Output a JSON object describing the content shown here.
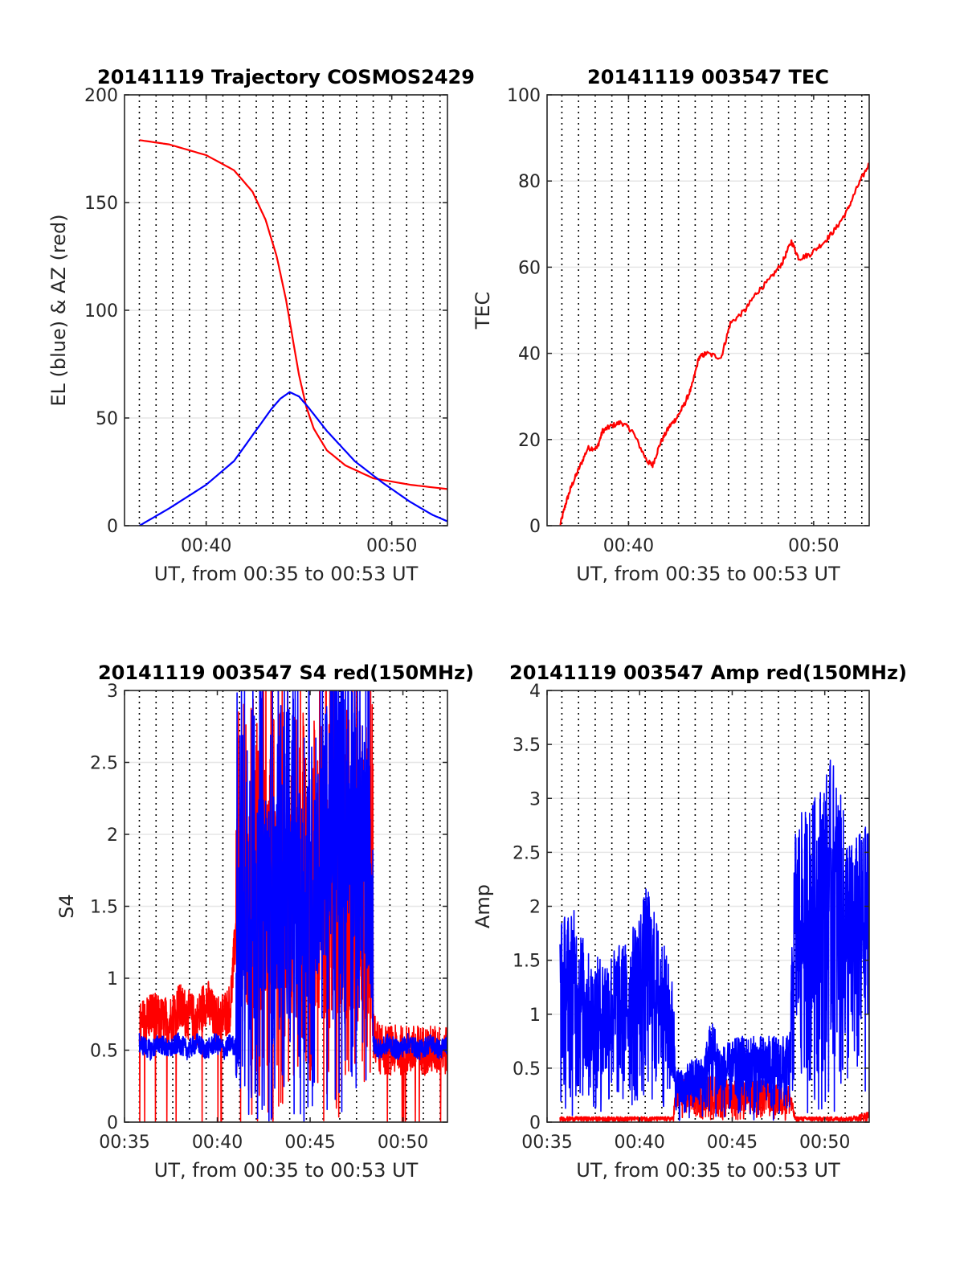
{
  "chart_data": [
    {
      "id": "traj",
      "type": "line",
      "title": "20141119 Trajectory COSMOS2429",
      "xlabel": "UT, from 00:35 to 00:53 UT",
      "ylabel": "EL (blue) & AZ (red)",
      "xlim": [
        35.6,
        53.0
      ],
      "ylim": [
        0,
        200
      ],
      "xticks": [
        {
          "v": 40,
          "label": "00:40"
        },
        {
          "v": 50,
          "label": "00:50"
        }
      ],
      "yticks": [
        {
          "v": 0,
          "label": "0"
        },
        {
          "v": 50,
          "label": "50"
        },
        {
          "v": 100,
          "label": "100"
        },
        {
          "v": 150,
          "label": "150"
        },
        {
          "v": 200,
          "label": "200"
        }
      ],
      "grid": {
        "x": "dotted",
        "y": "solid"
      },
      "series": [
        {
          "color": "#ff0000",
          "x": [
            36.4,
            38.0,
            40.0,
            41.5,
            42.5,
            43.2,
            43.8,
            44.3,
            44.7,
            45.0,
            45.4,
            45.8,
            46.5,
            47.5,
            49.0,
            51.0,
            53.0
          ],
          "y": [
            179,
            177,
            172,
            165,
            155,
            142,
            125,
            105,
            85,
            70,
            55,
            45,
            35,
            28,
            22,
            19,
            17
          ]
        },
        {
          "color": "#0000ff",
          "x": [
            36.4,
            38.0,
            40.0,
            41.5,
            42.5,
            43.5,
            44.0,
            44.5,
            45.0,
            45.5,
            46.5,
            48.0,
            49.5,
            51.0,
            52.2,
            53.0
          ],
          "y": [
            0,
            8,
            19,
            30,
            42,
            54,
            59,
            62,
            60,
            55,
            44,
            30,
            20,
            11,
            5,
            2
          ]
        }
      ]
    },
    {
      "id": "tec",
      "type": "line",
      "title": "20141119 003547 TEC",
      "xlabel": "UT, from 00:35 to 00:53 UT",
      "ylabel": "TEC",
      "xlim": [
        35.6,
        53.0
      ],
      "ylim": [
        0,
        100
      ],
      "xticks": [
        {
          "v": 40,
          "label": "00:40"
        },
        {
          "v": 50,
          "label": "00:50"
        }
      ],
      "yticks": [
        {
          "v": 0,
          "label": "0"
        },
        {
          "v": 20,
          "label": "20"
        },
        {
          "v": 40,
          "label": "40"
        },
        {
          "v": 60,
          "label": "60"
        },
        {
          "v": 80,
          "label": "80"
        },
        {
          "v": 100,
          "label": "100"
        }
      ],
      "grid": {
        "x": "dotted",
        "y": "solid"
      },
      "series": [
        {
          "color": "#ff0000",
          "noise": 0.6,
          "x": [
            36.3,
            36.6,
            36.9,
            37.3,
            37.8,
            38.3,
            38.6,
            39.0,
            39.6,
            40.2,
            41.0,
            41.3,
            41.7,
            42.2,
            42.6,
            43.0,
            43.4,
            43.8,
            44.2,
            45.0,
            45.5,
            46.3,
            46.9,
            47.6,
            48.3,
            48.8,
            49.2,
            49.8,
            50.6,
            51.2,
            51.8,
            52.4,
            53.0
          ],
          "y": [
            0,
            5,
            9,
            13,
            18,
            18,
            22,
            23,
            24,
            22,
            15,
            14,
            19,
            23,
            25,
            28,
            32,
            39,
            40,
            39,
            47,
            50,
            54,
            57,
            61,
            66,
            62,
            63,
            66,
            69,
            73,
            79,
            84
          ]
        }
      ]
    },
    {
      "id": "s4",
      "type": "line",
      "title": "20141119 003547 S4 red(150MHz)",
      "xlabel": "UT, from 00:35 to 00:53 UT",
      "ylabel": "S4",
      "xlim": [
        35.6,
        53.0
      ],
      "ylim": [
        0,
        3
      ],
      "xticks": [
        {
          "v": 35.6,
          "label": "00:35"
        },
        {
          "v": 40.6,
          "label": "00:40"
        },
        {
          "v": 45.6,
          "label": "00:45"
        },
        {
          "v": 50.6,
          "label": "00:50"
        }
      ],
      "yticks": [
        {
          "v": 0,
          "label": "0"
        },
        {
          "v": 0.5,
          "label": "0.5"
        },
        {
          "v": 1,
          "label": "1"
        },
        {
          "v": 1.5,
          "label": "1.5"
        },
        {
          "v": 2,
          "label": "2"
        },
        {
          "v": 2.5,
          "label": "2.5"
        },
        {
          "v": 3,
          "label": "3"
        }
      ],
      "grid": {
        "x": "dotted",
        "y": "solid"
      },
      "series": [
        {
          "color": "#ff0000",
          "x": [
            36.4,
            37.0,
            37.5,
            38.0,
            38.5,
            39.0,
            39.5,
            40.0,
            40.5,
            41.0,
            41.3,
            41.7,
            42.2,
            42.7,
            43.2,
            43.7,
            44.2,
            44.7,
            45.2,
            45.7,
            46.2,
            46.7,
            47.2,
            47.7,
            48.2,
            48.7,
            49.0,
            49.4,
            49.8,
            50.3,
            50.9,
            51.5,
            52.1,
            52.6,
            53.0
          ],
          "y": [
            0.65,
            0.75,
            0.7,
            0.7,
            0.8,
            0.75,
            0.7,
            0.85,
            0.7,
            0.75,
            0.8,
            1.5,
            1.5,
            1.5,
            1.5,
            1.5,
            1.5,
            1.3,
            1.4,
            1.3,
            1.3,
            1.2,
            1.2,
            1.2,
            1.2,
            1.2,
            0.6,
            0.5,
            0.5,
            0.5,
            0.5,
            0.5,
            0.5,
            0.5,
            0.5
          ]
        },
        {
          "color": "#0000ff",
          "x": [
            36.4,
            37.0,
            37.5,
            38.0,
            38.5,
            39.0,
            39.5,
            40.0,
            40.5,
            41.0,
            41.3,
            41.7,
            42.2,
            42.7,
            43.2,
            43.7,
            44.2,
            44.7,
            45.2,
            45.6,
            46.0,
            46.4,
            46.8,
            47.2,
            47.6,
            48.0,
            48.4,
            48.8,
            49.0,
            49.4,
            49.8,
            50.3,
            50.9,
            51.5,
            52.1,
            52.6,
            53.0
          ],
          "y": [
            0.55,
            0.5,
            0.55,
            0.5,
            0.55,
            0.5,
            0.55,
            0.5,
            0.55,
            0.5,
            0.55,
            0.5,
            1.5,
            1.5,
            1.5,
            1.5,
            1.5,
            1.5,
            1.5,
            1.6,
            1.7,
            1.9,
            2.2,
            2.3,
            2.4,
            2.1,
            1.9,
            1.7,
            0.55,
            0.5,
            0.55,
            0.5,
            0.55,
            0.5,
            0.55,
            0.5,
            0.55
          ]
        }
      ]
    },
    {
      "id": "amp",
      "type": "line",
      "title": "20141119 003547 Amp red(150MHz)",
      "xlabel": "UT, from 00:35 to 00:53 UT",
      "ylabel": "Amp",
      "xlim": [
        35.6,
        53.0
      ],
      "ylim": [
        0,
        4
      ],
      "xticks": [
        {
          "v": 35.6,
          "label": "00:35"
        },
        {
          "v": 40.6,
          "label": "00:40"
        },
        {
          "v": 45.6,
          "label": "00:45"
        },
        {
          "v": 50.6,
          "label": "00:50"
        }
      ],
      "yticks": [
        {
          "v": 0,
          "label": "0"
        },
        {
          "v": 0.5,
          "label": "0.5"
        },
        {
          "v": 1,
          "label": "1"
        },
        {
          "v": 1.5,
          "label": "1.5"
        },
        {
          "v": 2,
          "label": "2"
        },
        {
          "v": 2.5,
          "label": "2.5"
        },
        {
          "v": 3,
          "label": "3"
        },
        {
          "v": 3.5,
          "label": "3.5"
        },
        {
          "v": 4,
          "label": "4"
        }
      ],
      "grid": {
        "x": "dotted",
        "y": "solid"
      },
      "series": [
        {
          "color": "#ff0000",
          "x": [
            36.3,
            37.0,
            38.0,
            39.0,
            40.0,
            41.0,
            42.0,
            42.4,
            42.6,
            43.0,
            43.5,
            44.0,
            44.5,
            45.0,
            46.0,
            47.0,
            48.0,
            48.7,
            49.0,
            50.0,
            51.0,
            52.0,
            53.0
          ],
          "y": [
            0.05,
            0.05,
            0.05,
            0.05,
            0.05,
            0.05,
            0.05,
            0.05,
            0.45,
            0.4,
            0.4,
            0.4,
            0.45,
            0.4,
            0.4,
            0.4,
            0.35,
            0.35,
            0.05,
            0.05,
            0.05,
            0.05,
            0.1
          ]
        },
        {
          "color": "#0000ff",
          "x": [
            36.3,
            37.0,
            38.0,
            39.0,
            40.0,
            41.0,
            42.0,
            42.4,
            42.6,
            43.0,
            43.5,
            44.0,
            44.5,
            45.0,
            46.0,
            47.0,
            48.0,
            48.7,
            49.0,
            50.0,
            51.0,
            52.0,
            53.0
          ],
          "y": [
            1.9,
            2.0,
            1.5,
            1.6,
            1.7,
            2.2,
            1.6,
            1.3,
            0.5,
            0.5,
            0.6,
            0.6,
            1.0,
            0.7,
            0.8,
            0.8,
            0.8,
            0.8,
            2.8,
            3.0,
            3.4,
            2.6,
            2.8
          ]
        }
      ]
    }
  ]
}
